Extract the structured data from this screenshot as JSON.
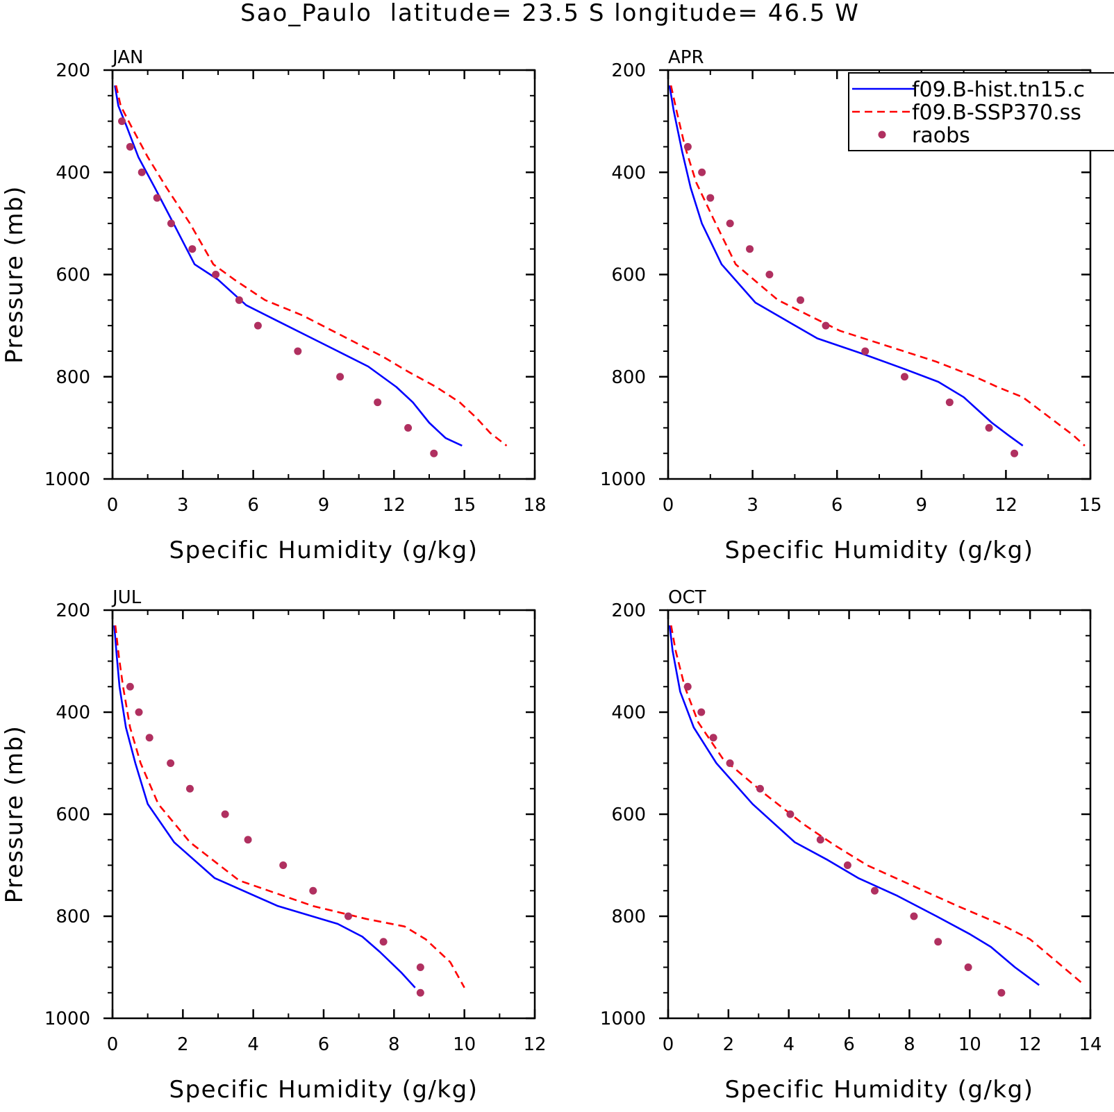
{
  "figure": {
    "title": "Sao_Paulo  latitude= 23.5 S longitude= 46.5 W"
  },
  "legend": {
    "entries": [
      {
        "label": "f09.B-hist.tn15.c",
        "color": "#0000ff",
        "style": "solid"
      },
      {
        "label": "f09.B-SSP370.ss",
        "color": "#ff0000",
        "style": "dashed"
      },
      {
        "label": "raobs",
        "color": "#b03060",
        "style": "marker"
      }
    ]
  },
  "chart_data": [
    {
      "type": "line",
      "panel_label": "JAN",
      "xlabel": "Specific Humidity (g/kg)",
      "ylabel": "Pressure (mb)",
      "xlim": [
        0,
        18
      ],
      "xticks": [
        0,
        3,
        6,
        9,
        12,
        15,
        18
      ],
      "ylim": [
        1000,
        200
      ],
      "yticks": [
        200,
        400,
        600,
        800,
        1000
      ],
      "y_reversed": true,
      "series": [
        {
          "name": "f09.B-hist.tn15.c",
          "color": "#0000ff",
          "style": "solid",
          "x": [
            0.1,
            0.25,
            0.6,
            1.1,
            1.8,
            2.6,
            3.5,
            4.5,
            5.7,
            7.0,
            8.3,
            9.6,
            10.9,
            12.1,
            12.8,
            13.5,
            14.2,
            14.9
          ],
          "y": [
            230,
            270,
            310,
            370,
            430,
            500,
            580,
            610,
            660,
            690,
            720,
            750,
            780,
            820,
            850,
            890,
            920,
            935
          ]
        },
        {
          "name": "f09.B-SSP370.ss",
          "color": "#ff0000",
          "style": "dashed",
          "x": [
            0.15,
            0.35,
            0.8,
            1.5,
            2.3,
            3.3,
            4.3,
            5.2,
            6.5,
            8.1,
            9.8,
            11.5,
            12.6,
            13.8,
            14.8,
            15.5,
            16.1,
            16.8
          ],
          "y": [
            230,
            270,
            310,
            370,
            430,
            500,
            580,
            610,
            650,
            680,
            720,
            760,
            790,
            820,
            850,
            880,
            910,
            935
          ]
        },
        {
          "name": "raobs",
          "color": "#b03060",
          "style": "marker",
          "x": [
            0.4,
            0.75,
            1.25,
            1.9,
            2.5,
            3.4,
            4.4,
            5.4,
            6.2,
            7.9,
            9.7,
            11.3,
            12.6,
            13.7
          ],
          "y": [
            300,
            350,
            400,
            450,
            500,
            550,
            600,
            650,
            700,
            750,
            800,
            850,
            900,
            950
          ]
        }
      ]
    },
    {
      "type": "line",
      "panel_label": "APR",
      "xlabel": "Specific Humidity (g/kg)",
      "ylabel": "",
      "xlim": [
        0,
        15
      ],
      "xticks": [
        0,
        3,
        6,
        9,
        12,
        15
      ],
      "ylim": [
        1000,
        200
      ],
      "yticks": [
        200,
        400,
        600,
        800,
        1000
      ],
      "y_reversed": true,
      "series": [
        {
          "name": "f09.B-hist.tn15.c",
          "color": "#0000ff",
          "style": "solid",
          "x": [
            0.05,
            0.2,
            0.5,
            0.8,
            1.2,
            1.9,
            3.1,
            4.2,
            5.3,
            6.9,
            8.4,
            9.6,
            10.5,
            11.0,
            11.5,
            12.1,
            12.6
          ],
          "y": [
            230,
            280,
            360,
            430,
            500,
            580,
            655,
            690,
            725,
            755,
            785,
            810,
            840,
            865,
            890,
            915,
            935
          ]
        },
        {
          "name": "f09.B-SSP370.ss",
          "color": "#ff0000",
          "style": "dashed",
          "x": [
            0.1,
            0.3,
            0.6,
            1.0,
            1.6,
            2.4,
            3.9,
            5.0,
            6.1,
            7.8,
            9.5,
            10.9,
            11.7,
            12.6,
            13.2,
            13.8,
            14.4,
            14.8
          ],
          "y": [
            230,
            280,
            350,
            420,
            490,
            580,
            650,
            680,
            710,
            740,
            770,
            800,
            820,
            840,
            865,
            890,
            915,
            935
          ]
        },
        {
          "name": "raobs",
          "color": "#b03060",
          "style": "marker",
          "x": [
            0.7,
            1.2,
            1.5,
            2.2,
            2.9,
            3.6,
            4.7,
            5.6,
            7.0,
            8.4,
            10.0,
            11.4,
            12.3
          ],
          "y": [
            350,
            400,
            450,
            500,
            550,
            600,
            650,
            700,
            750,
            800,
            850,
            900,
            950
          ]
        }
      ]
    },
    {
      "type": "line",
      "panel_label": "JUL",
      "xlabel": "Specific Humidity (g/kg)",
      "ylabel": "Pressure (mb)",
      "xlim": [
        0,
        12
      ],
      "xticks": [
        0,
        2,
        4,
        6,
        8,
        10,
        12
      ],
      "ylim": [
        1000,
        200
      ],
      "yticks": [
        200,
        400,
        600,
        800,
        1000
      ],
      "y_reversed": true,
      "series": [
        {
          "name": "f09.B-hist.tn15.c",
          "color": "#0000ff",
          "style": "solid",
          "x": [
            0.05,
            0.12,
            0.2,
            0.38,
            0.65,
            1.0,
            1.75,
            2.9,
            4.7,
            6.4,
            7.1,
            7.6,
            8.2,
            8.6
          ],
          "y": [
            230,
            290,
            350,
            430,
            500,
            580,
            655,
            725,
            780,
            815,
            840,
            870,
            910,
            940
          ]
        },
        {
          "name": "f09.B-SSP370.ss",
          "color": "#ff0000",
          "style": "dashed",
          "x": [
            0.08,
            0.18,
            0.3,
            0.5,
            0.8,
            1.3,
            2.2,
            3.6,
            5.7,
            7.2,
            8.3,
            8.9,
            9.6,
            10.0
          ],
          "y": [
            230,
            290,
            350,
            430,
            500,
            580,
            655,
            730,
            780,
            805,
            820,
            845,
            890,
            940
          ]
        },
        {
          "name": "raobs",
          "color": "#b03060",
          "style": "marker",
          "x": [
            0.5,
            0.75,
            1.05,
            1.65,
            2.2,
            3.2,
            3.85,
            4.85,
            5.7,
            6.7,
            7.7,
            8.75,
            8.75
          ],
          "y": [
            350,
            400,
            450,
            500,
            550,
            600,
            650,
            700,
            750,
            800,
            850,
            900,
            950
          ]
        }
      ]
    },
    {
      "type": "line",
      "panel_label": "OCT",
      "xlabel": "Specific Humidity (g/kg)",
      "ylabel": "",
      "xlim": [
        0,
        14
      ],
      "xticks": [
        0,
        2,
        4,
        6,
        8,
        10,
        12,
        14
      ],
      "ylim": [
        1000,
        200
      ],
      "yticks": [
        200,
        400,
        600,
        800,
        1000
      ],
      "y_reversed": true,
      "series": [
        {
          "name": "f09.B-hist.tn15.c",
          "color": "#0000ff",
          "style": "solid",
          "x": [
            0.05,
            0.15,
            0.4,
            0.85,
            1.6,
            2.8,
            4.2,
            5.3,
            6.3,
            7.6,
            8.9,
            10.0,
            10.7,
            11.5,
            12.3
          ],
          "y": [
            230,
            280,
            360,
            430,
            500,
            580,
            655,
            690,
            725,
            760,
            800,
            835,
            860,
            900,
            935
          ]
        },
        {
          "name": "f09.B-SSP370.ss",
          "color": "#ff0000",
          "style": "dashed",
          "x": [
            0.1,
            0.25,
            0.55,
            1.0,
            1.8,
            3.2,
            4.5,
            5.5,
            6.6,
            8.1,
            9.6,
            11.0,
            12.0,
            13.0,
            13.8
          ],
          "y": [
            230,
            280,
            350,
            420,
            490,
            560,
            620,
            660,
            700,
            740,
            780,
            815,
            845,
            895,
            935
          ]
        },
        {
          "name": "raobs",
          "color": "#b03060",
          "style": "marker",
          "x": [
            0.65,
            1.1,
            1.5,
            2.05,
            3.05,
            4.05,
            5.05,
            5.95,
            6.85,
            8.15,
            8.95,
            9.95,
            11.05
          ],
          "y": [
            350,
            400,
            450,
            500,
            550,
            600,
            650,
            700,
            750,
            800,
            850,
            900,
            950
          ]
        }
      ]
    }
  ]
}
